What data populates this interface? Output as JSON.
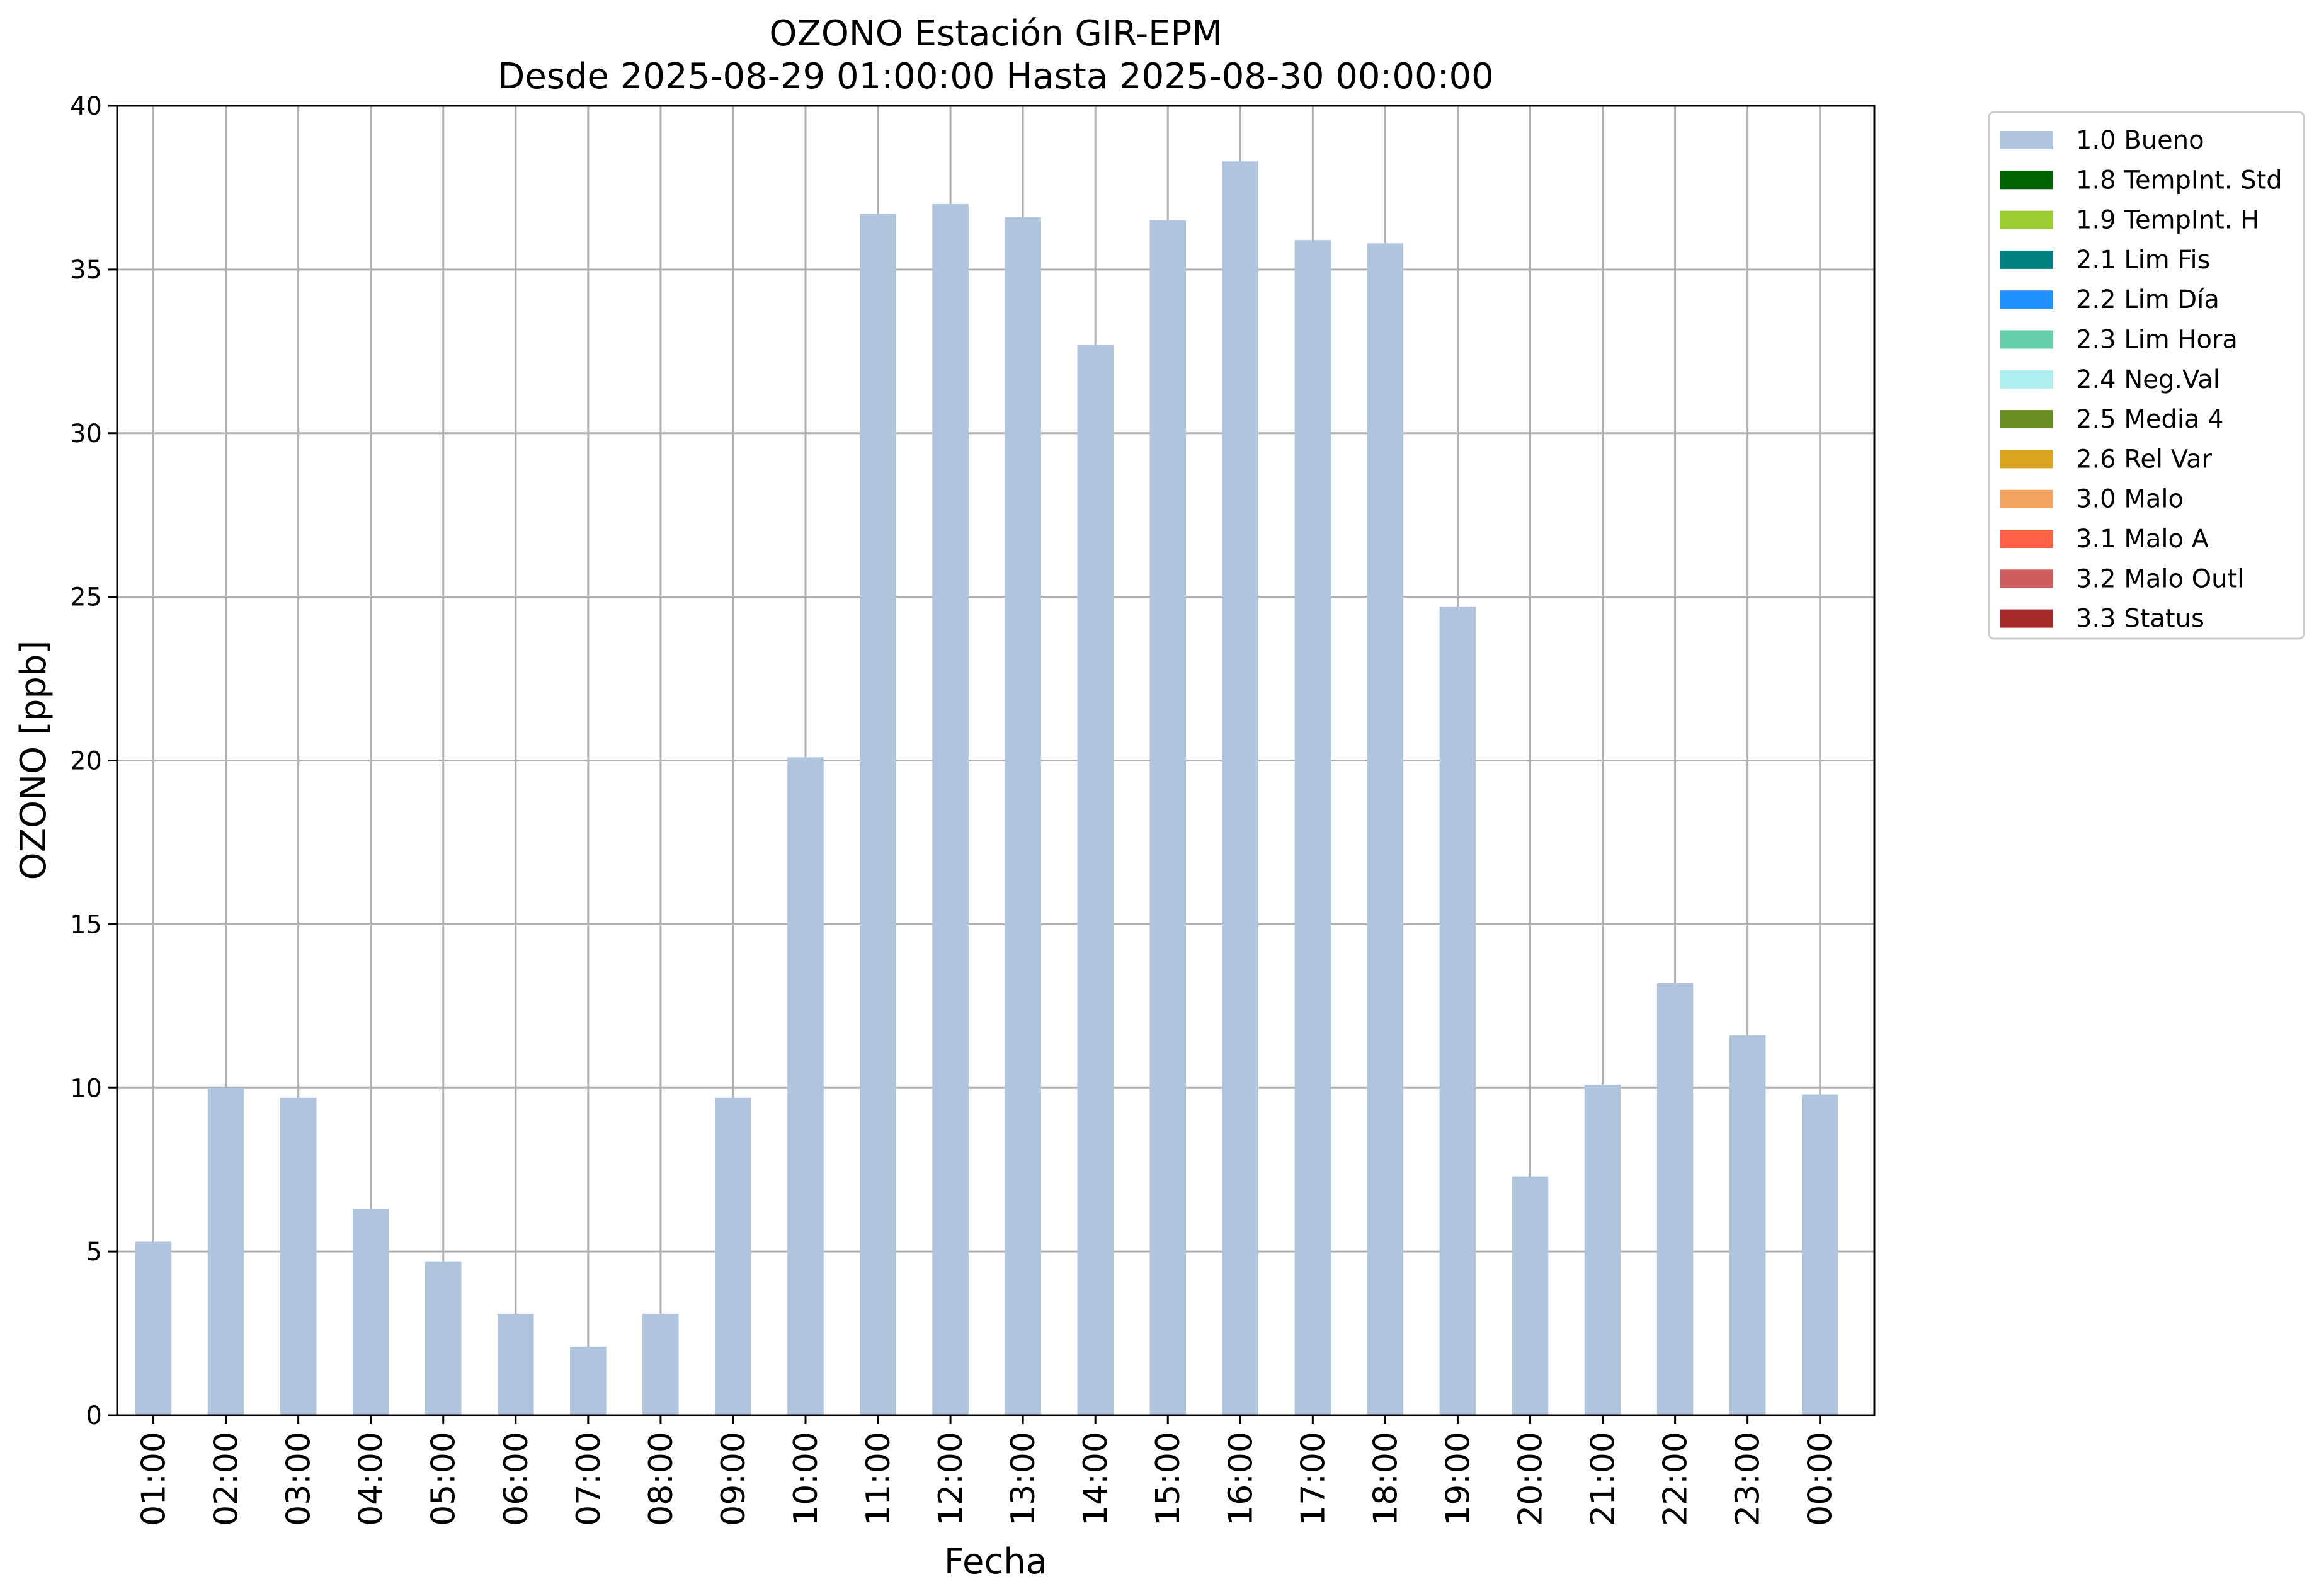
{
  "chart_data": {
    "type": "bar",
    "title": "OZONO Estación GIR-EPM",
    "subtitle": "Desde 2025-08-29 01:00:00 Hasta 2025-08-30 00:00:00",
    "xlabel": "Fecha",
    "ylabel": "OZONO [ppb]",
    "ylim": [
      0,
      40
    ],
    "yticks": [
      "0",
      "5",
      "10",
      "15",
      "20",
      "25",
      "30",
      "35",
      "40"
    ],
    "grid": true,
    "legend_position": "outside-top-right",
    "categories": [
      "01:00",
      "02:00",
      "03:00",
      "04:00",
      "05:00",
      "06:00",
      "07:00",
      "08:00",
      "09:00",
      "10:00",
      "11:00",
      "12:00",
      "13:00",
      "14:00",
      "15:00",
      "16:00",
      "17:00",
      "18:00",
      "19:00",
      "20:00",
      "21:00",
      "22:00",
      "23:00",
      "00:00"
    ],
    "series": [
      {
        "name": "1.0 Bueno",
        "color": "#b0c4de",
        "values": [
          5.3,
          10.0,
          9.7,
          6.3,
          4.7,
          3.1,
          2.1,
          3.1,
          9.7,
          20.1,
          36.7,
          37.0,
          36.6,
          32.7,
          36.5,
          38.3,
          35.9,
          35.8,
          24.7,
          7.3,
          10.1,
          13.2,
          11.6,
          9.8
        ]
      }
    ],
    "legend": [
      {
        "label": "1.0 Bueno",
        "color": "#b0c4de"
      },
      {
        "label": "1.8 TempInt. Std",
        "color": "#006400"
      },
      {
        "label": "1.9 TempInt. H",
        "color": "#9acd32"
      },
      {
        "label": "2.1 Lim Fis",
        "color": "#008080"
      },
      {
        "label": "2.2 Lim Día",
        "color": "#1e90ff"
      },
      {
        "label": "2.3 Lim Hora",
        "color": "#66cdaa"
      },
      {
        "label": "2.4 Neg.Val",
        "color": "#afeeee"
      },
      {
        "label": "2.5 Media 4",
        "color": "#6b8e23"
      },
      {
        "label": "2.6 Rel Var",
        "color": "#daa520"
      },
      {
        "label": "3.0 Malo",
        "color": "#f4a460"
      },
      {
        "label": "3.1 Malo A",
        "color": "#ff6347"
      },
      {
        "label": "3.2 Malo Outl",
        "color": "#cd5c5c"
      },
      {
        "label": "3.3 Status",
        "color": "#a52a2a"
      }
    ]
  }
}
